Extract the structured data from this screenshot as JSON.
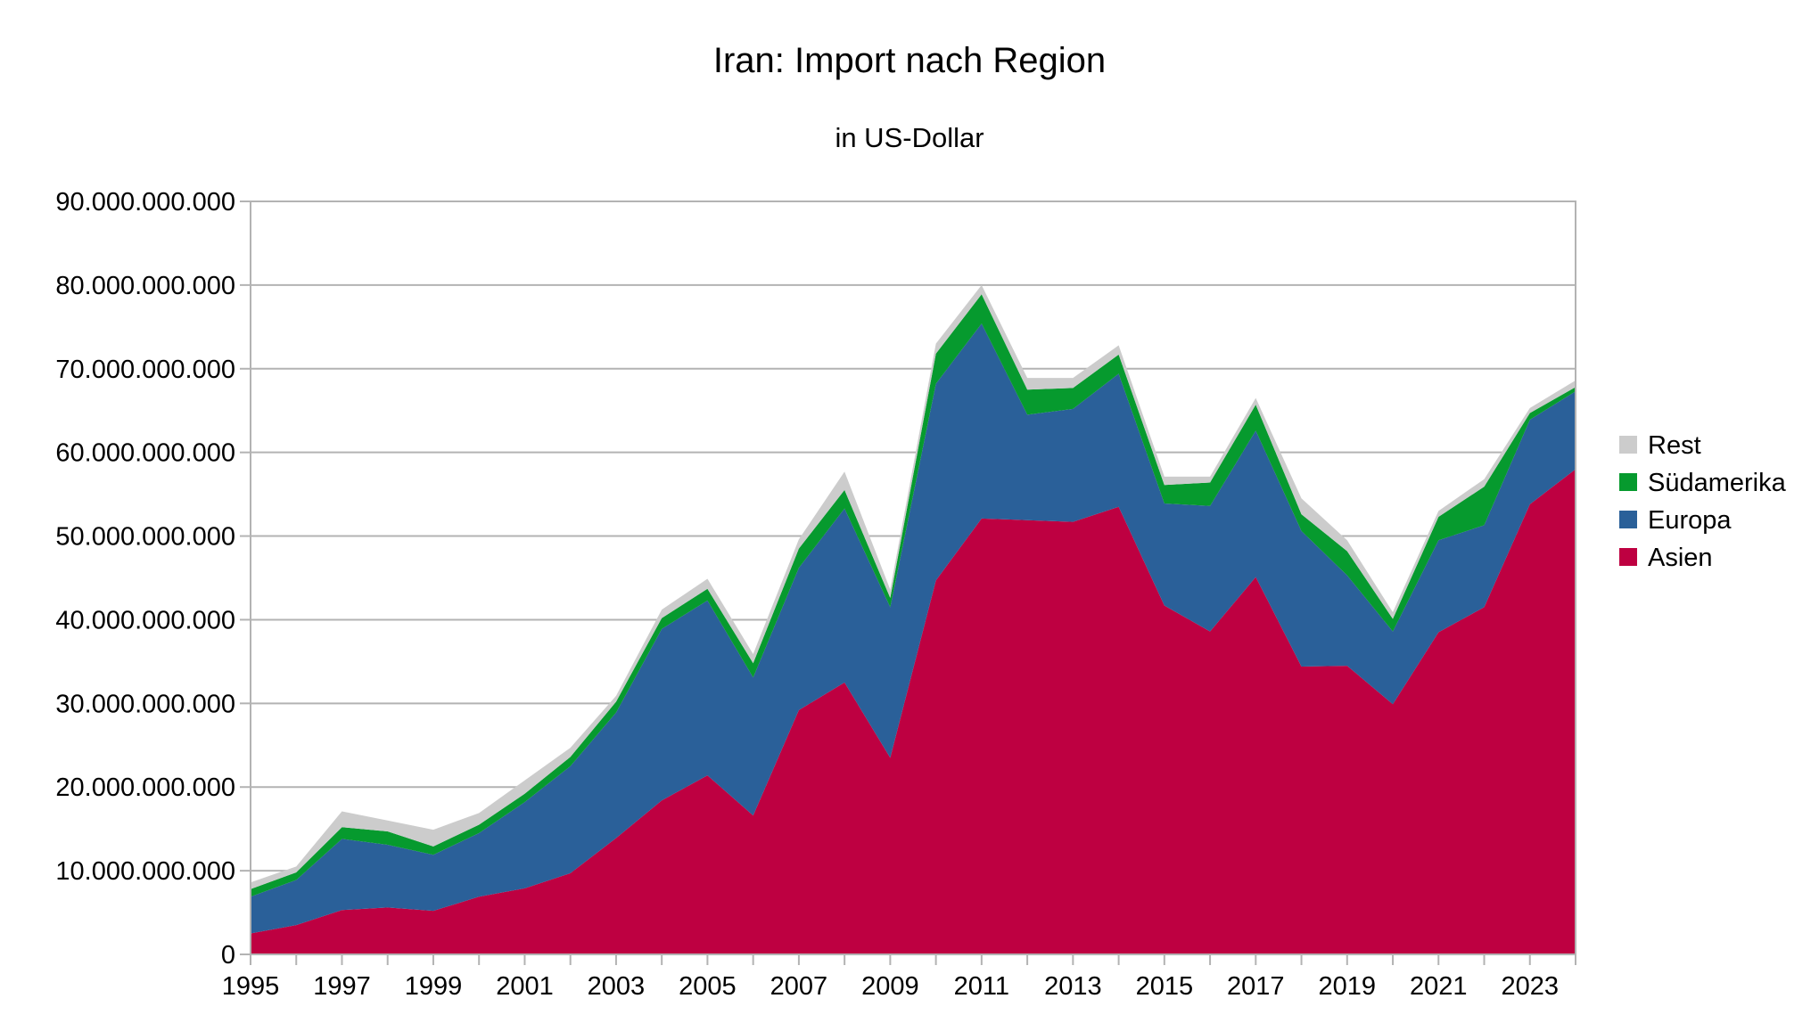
{
  "chart_data": {
    "type": "area",
    "stacked": true,
    "title": "Iran: Import nach Region",
    "subtitle": "in US-Dollar",
    "xlabel": "",
    "ylabel": "",
    "ylim": [
      0,
      90000000000
    ],
    "ytick_step": 10000000000,
    "ytick_labels": [
      "0",
      "10.000.000.000",
      "20.000.000.000",
      "30.000.000.000",
      "40.000.000.000",
      "50.000.000.000",
      "60.000.000.000",
      "70.000.000.000",
      "80.000.000.000",
      "90.000.000.000"
    ],
    "xlim": [
      1995,
      2024
    ],
    "xtick_labels": [
      "1995",
      "1997",
      "1999",
      "2001",
      "2003",
      "2005",
      "2007",
      "2009",
      "2011",
      "2013",
      "2015",
      "2017",
      "2019",
      "2021",
      "2023"
    ],
    "grid": true,
    "legend_position": "right",
    "x": [
      1995,
      1996,
      1997,
      1998,
      1999,
      2000,
      2001,
      2002,
      2003,
      2004,
      2005,
      2006,
      2007,
      2008,
      2009,
      2010,
      2011,
      2012,
      2013,
      2014,
      2015,
      2016,
      2017,
      2018,
      2019,
      2020,
      2021,
      2022,
      2023,
      2024
    ],
    "series": [
      {
        "name": "Asien",
        "color": "#be0041",
        "values": [
          2500000000,
          3500000000,
          5300000000,
          5600000000,
          5200000000,
          6900000000,
          7900000000,
          9700000000,
          13900000000,
          18400000000,
          21400000000,
          16600000000,
          29200000000,
          32500000000,
          23500000000,
          44700000000,
          52100000000,
          51900000000,
          51700000000,
          53500000000,
          41700000000,
          38600000000,
          45100000000,
          34400000000,
          34500000000,
          29900000000,
          38500000000,
          41500000000,
          53800000000,
          58000000000
        ]
      },
      {
        "name": "Europa",
        "color": "#2a6099",
        "values": [
          4400000000,
          5400000000,
          8500000000,
          7500000000,
          6700000000,
          7600000000,
          10300000000,
          12800000000,
          15000000000,
          20500000000,
          20900000000,
          16500000000,
          17000000000,
          20800000000,
          18000000000,
          23500000000,
          23300000000,
          12600000000,
          13500000000,
          15900000000,
          12200000000,
          15000000000,
          17500000000,
          16200000000,
          10800000000,
          8700000000,
          11000000000,
          9800000000,
          10100000000,
          9300000000
        ]
      },
      {
        "name": "Südamerika",
        "color": "#069a2e",
        "values": [
          900000000,
          900000000,
          1400000000,
          1600000000,
          1000000000,
          1000000000,
          1000000000,
          1100000000,
          1300000000,
          1300000000,
          1400000000,
          1700000000,
          2300000000,
          2200000000,
          1100000000,
          3600000000,
          3500000000,
          3000000000,
          2500000000,
          2300000000,
          2200000000,
          2800000000,
          3100000000,
          2000000000,
          2900000000,
          1500000000,
          2800000000,
          4600000000,
          800000000,
          500000000
        ]
      },
      {
        "name": "Rest",
        "color": "#cccccc",
        "values": [
          800000000,
          700000000,
          1900000000,
          1300000000,
          2000000000,
          1400000000,
          1600000000,
          1100000000,
          700000000,
          1000000000,
          1200000000,
          1100000000,
          1100000000,
          2200000000,
          1000000000,
          1200000000,
          1100000000,
          1400000000,
          1200000000,
          1100000000,
          1000000000,
          700000000,
          800000000,
          1900000000,
          1300000000,
          800000000,
          700000000,
          900000000,
          600000000,
          800000000
        ]
      }
    ]
  }
}
